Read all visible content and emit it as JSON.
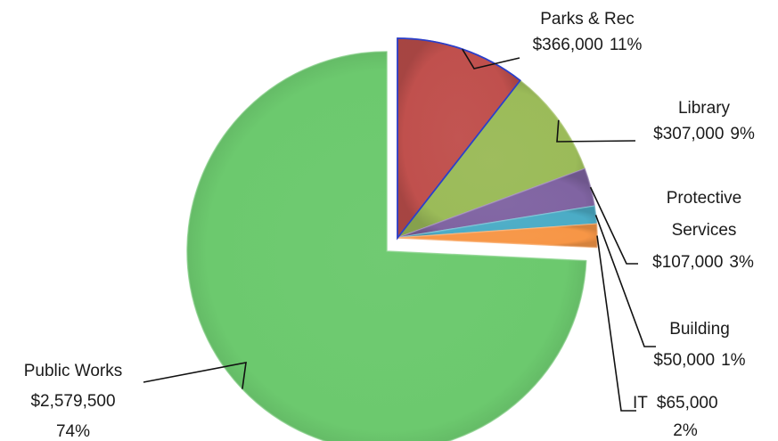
{
  "chart_data": {
    "type": "pie",
    "title": "",
    "slices": [
      {
        "category": "Parks & Rec",
        "value": 366000,
        "value_label": "$366,000",
        "percent_label": "11%",
        "color": "#c0504d"
      },
      {
        "category": "Library",
        "value": 307000,
        "value_label": "$307,000",
        "percent_label": "9%",
        "color": "#9bbb59"
      },
      {
        "category": "Protective Services",
        "value": 107000,
        "value_label": "$107,000",
        "percent_label": "3%",
        "color": "#8064a2"
      },
      {
        "category": "Building",
        "value": 50000,
        "value_label": "$50,000",
        "percent_label": "1%",
        "color": "#4bacc6"
      },
      {
        "category": "IT",
        "value": 65000,
        "value_label": "$65,000",
        "percent_label": "2%",
        "color": "#f79646"
      },
      {
        "category": "Public Works",
        "value": 2579500,
        "value_label": "$2,579,500",
        "percent_label": "74%",
        "color": "#6cc96e"
      }
    ],
    "legend": "none",
    "data_labels": "outside with leader lines"
  }
}
